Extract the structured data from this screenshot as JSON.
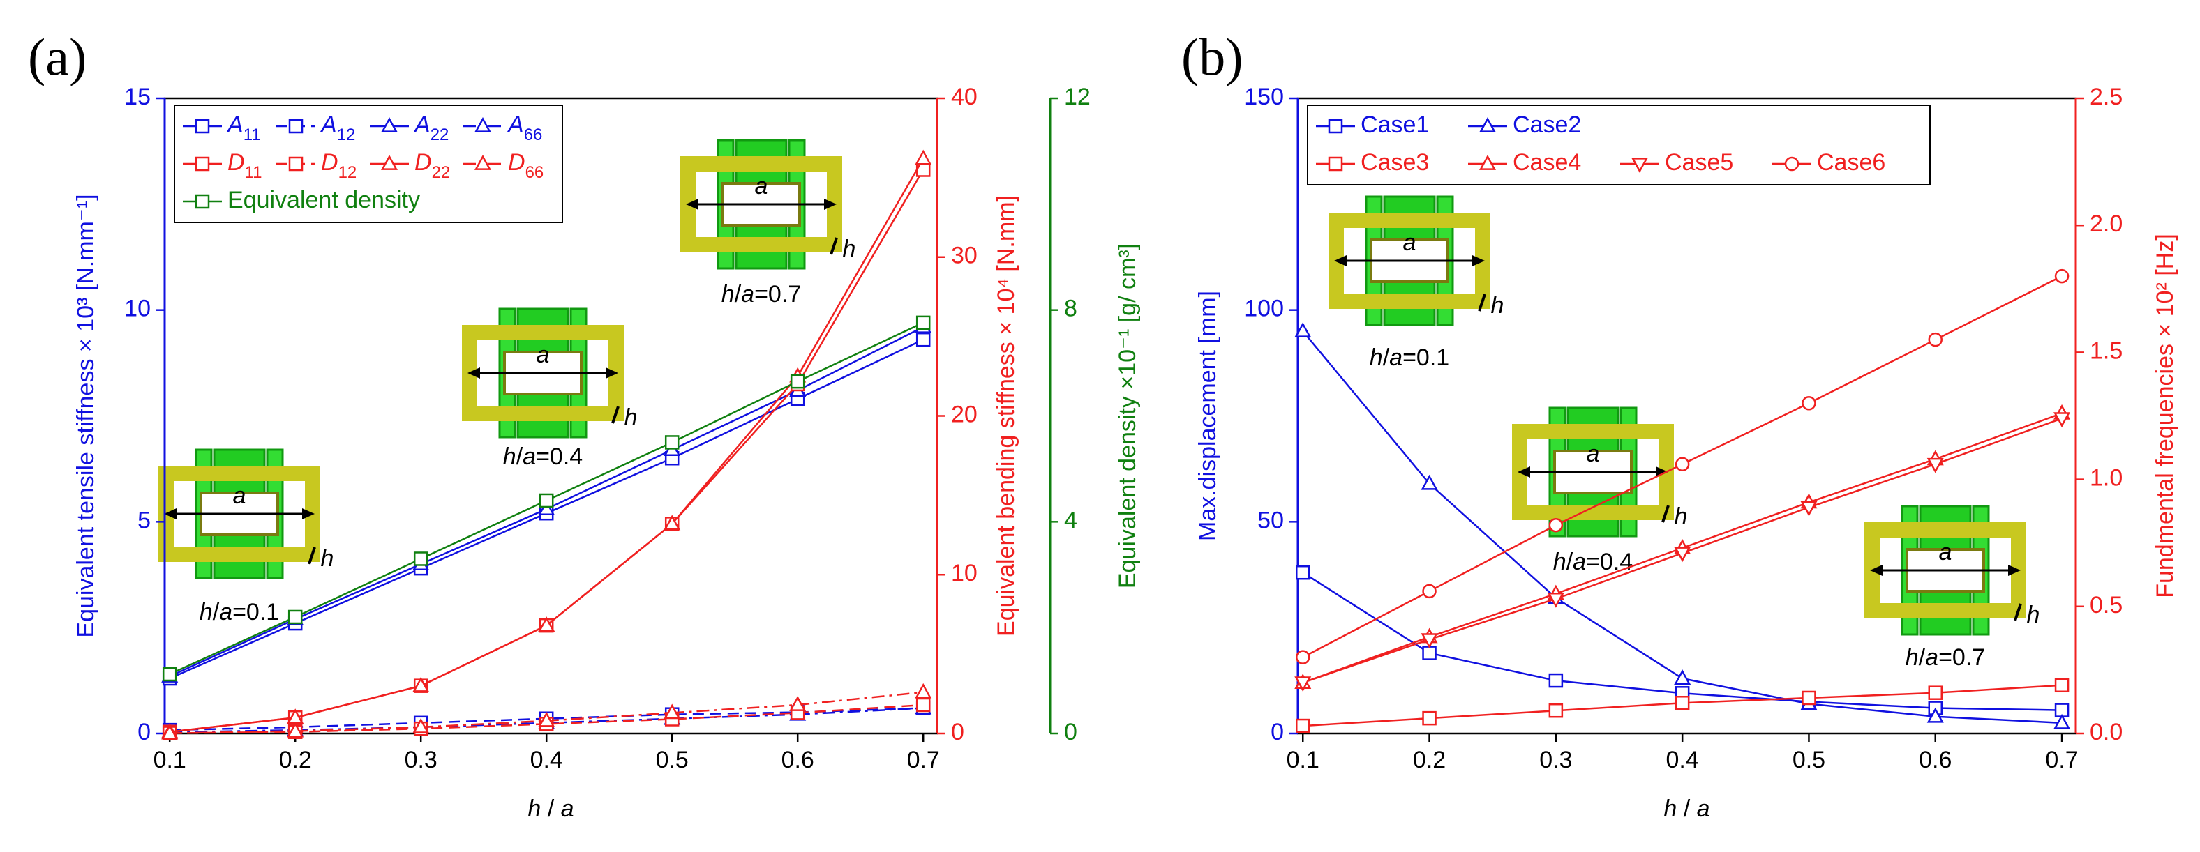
{
  "chart_data": [
    {
      "type": "line",
      "panel": "(a)",
      "xlabel": "h / a",
      "ylabel": "Equivalent tensile stiffness × 10³ [N.mm⁻¹]",
      "y2label": "Equivalent bending stiffness × 10⁴ [N.mm]",
      "y3label": "Equivalent density ×10⁻¹ [g/ cm³]",
      "x": [
        0.1,
        0.2,
        0.3,
        0.4,
        0.5,
        0.6,
        0.7
      ],
      "xlim": [
        0.096,
        0.711
      ],
      "xticks": [
        0.1,
        0.2,
        0.3,
        0.4,
        0.5,
        0.6,
        0.7
      ],
      "ylim": [
        0,
        15
      ],
      "yticks": [
        0,
        5,
        10,
        15
      ],
      "ycolor": "#1010e0",
      "y2lim": [
        0,
        40
      ],
      "y2ticks": [
        0,
        10,
        20,
        30,
        40
      ],
      "y2color": "#f02020",
      "y3lim": [
        0,
        12
      ],
      "y3ticks": [
        0,
        4,
        8,
        12
      ],
      "y3color": "#108010",
      "legend": "upper left",
      "annotations": [
        "h/a=0.1",
        "h/a=0.4",
        "h/a=0.7"
      ],
      "inset_labels": [
        "a",
        "h"
      ],
      "series": [
        {
          "name": "A11",
          "color": "#1010e0",
          "marker": "square",
          "dash": "solid",
          "axis": "y",
          "values": [
            1.3,
            2.6,
            3.9,
            5.2,
            6.5,
            7.9,
            9.3
          ]
        },
        {
          "name": "A12",
          "color": "#1010e0",
          "marker": "square",
          "dash": "dash",
          "axis": "y",
          "values": [
            0.08,
            0.15,
            0.25,
            0.35,
            0.45,
            0.5,
            0.6
          ]
        },
        {
          "name": "A22",
          "color": "#1010e0",
          "marker": "triangle",
          "dash": "solid",
          "axis": "y",
          "values": [
            1.35,
            2.7,
            4.0,
            5.3,
            6.7,
            8.1,
            9.6
          ]
        },
        {
          "name": "A66",
          "color": "#1010e0",
          "marker": "triangle",
          "dash": "dashdot",
          "axis": "y",
          "values": [
            0.03,
            0.08,
            0.15,
            0.25,
            0.35,
            0.45,
            0.6
          ]
        },
        {
          "name": "D11",
          "color": "#f02020",
          "marker": "square",
          "dash": "solid",
          "axis": "y2",
          "values": [
            0.1,
            1.0,
            3.0,
            6.8,
            13.2,
            22.0,
            35.5
          ]
        },
        {
          "name": "D12",
          "color": "#f02020",
          "marker": "square",
          "dash": "dash",
          "axis": "y2",
          "values": [
            0.02,
            0.1,
            0.3,
            0.6,
            0.9,
            1.3,
            1.8
          ]
        },
        {
          "name": "D22",
          "color": "#f02020",
          "marker": "triangle",
          "dash": "solid",
          "axis": "y2",
          "values": [
            0.1,
            1.0,
            3.0,
            6.8,
            13.2,
            22.5,
            36.2
          ]
        },
        {
          "name": "D66",
          "color": "#f02020",
          "marker": "triangle",
          "dash": "dashdot",
          "axis": "y2",
          "values": [
            0.02,
            0.15,
            0.4,
            0.8,
            1.3,
            1.8,
            2.6
          ]
        },
        {
          "name": "Equivalent density",
          "color": "#108010",
          "marker": "square",
          "dash": "solid",
          "axis": "y3",
          "values": [
            1.12,
            2.2,
            3.3,
            4.4,
            5.5,
            6.65,
            7.76
          ]
        }
      ]
    },
    {
      "type": "line",
      "panel": "(b)",
      "xlabel": "h / a",
      "ylabel": "Max.displacement [mm]",
      "y2label": "Fundmental frequencies × 10² [Hz]",
      "x": [
        0.1,
        0.2,
        0.3,
        0.4,
        0.5,
        0.6,
        0.7
      ],
      "xlim": [
        0.096,
        0.711
      ],
      "xticks": [
        0.1,
        0.2,
        0.3,
        0.4,
        0.5,
        0.6,
        0.7
      ],
      "ylim": [
        0,
        150
      ],
      "yticks": [
        0,
        50,
        100,
        150
      ],
      "ycolor": "#1010e0",
      "y2lim": [
        0,
        2.5
      ],
      "y2ticks": [
        {
          "value": 0,
          "label": "0.0"
        },
        0.5,
        {
          "value": 1,
          "label": "1.0"
        },
        1.5,
        {
          "value": 2,
          "label": "2.0"
        },
        2.5
      ],
      "y2color": "#f02020",
      "legend": "upper left",
      "annotations": [
        "h/a=0.1",
        "h/a=0.4",
        "h/a=0.7"
      ],
      "inset_labels": [
        "a",
        "h"
      ],
      "series": [
        {
          "name": "Case1",
          "color": "#1010e0",
          "marker": "square",
          "dash": "solid",
          "axis": "y",
          "values": [
            38,
            19,
            12.5,
            9.5,
            7.5,
            6,
            5.5
          ]
        },
        {
          "name": "Case2",
          "color": "#1010e0",
          "marker": "triangle",
          "dash": "solid",
          "axis": "y",
          "values": [
            95,
            59,
            32,
            13,
            7,
            4,
            2.5
          ]
        },
        {
          "name": "Case3",
          "color": "#f02020",
          "marker": "square",
          "dash": "solid",
          "axis": "y2",
          "values": [
            0.03,
            0.06,
            0.09,
            0.12,
            0.14,
            0.16,
            0.19
          ]
        },
        {
          "name": "Case4",
          "color": "#f02020",
          "marker": "triangle",
          "dash": "solid",
          "axis": "y2",
          "values": [
            0.2,
            0.38,
            0.55,
            0.73,
            0.91,
            1.08,
            1.26
          ]
        },
        {
          "name": "Case5",
          "color": "#f02020",
          "marker": "triangle-down",
          "dash": "solid",
          "axis": "y2",
          "values": [
            0.2,
            0.37,
            0.53,
            0.71,
            0.89,
            1.06,
            1.24
          ]
        },
        {
          "name": "Case6",
          "color": "#f02020",
          "marker": "circle",
          "dash": "solid",
          "axis": "y2",
          "values": [
            0.3,
            0.56,
            0.82,
            1.06,
            1.3,
            1.55,
            1.8
          ]
        }
      ]
    }
  ]
}
